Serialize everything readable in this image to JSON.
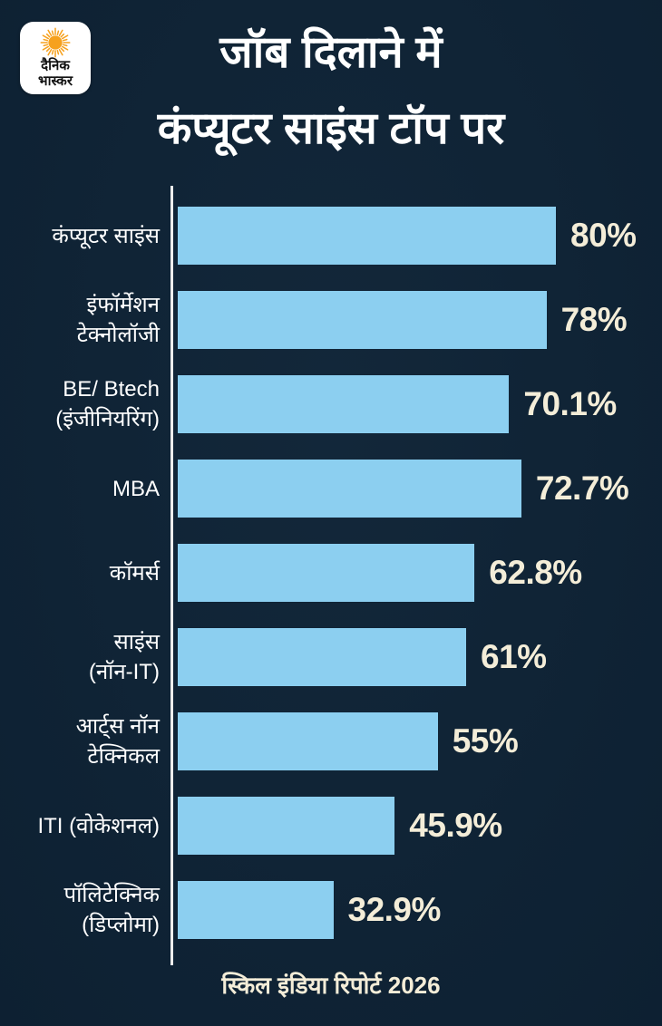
{
  "brand": {
    "logo_line1": "दैनिक",
    "logo_line2": "भास्कर",
    "sun_color": "#F6A11E"
  },
  "header": {
    "title_line1": "जॉब दिलाने में",
    "title_line2": "कंप्यूटर साइंस टॉप पर"
  },
  "chart_data": {
    "type": "bar",
    "orientation": "horizontal",
    "title": "जॉब दिलाने में कंप्यूटर साइंस टॉप पर",
    "categories": [
      "कंप्यूटर साइंस",
      "इंफॉर्मेशन\nटेक्नोलॉजी",
      "BE/ Btech\n(इंजीनियरिंग)",
      "MBA",
      "कॉमर्स",
      "साइंस\n(नॉन-IT)",
      "आर्ट्स नॉन\nटेक्निकल",
      "ITI (वोकेशनल)",
      "पॉलिटेक्निक\n(डिप्लोमा)"
    ],
    "values": [
      80,
      78,
      70.1,
      72.7,
      62.8,
      61,
      55,
      45.9,
      32.9
    ],
    "value_labels": [
      "80%",
      "78%",
      "70.1%",
      "72.7%",
      "62.8%",
      "61%",
      "55%",
      "45.9%",
      "32.9%"
    ],
    "xlim": [
      0,
      80
    ],
    "grid": false,
    "legend": false,
    "bar_color": "#8CCFF0",
    "value_label_color": "#F4EDD8",
    "category_label_color": "#FFFFFF",
    "axis_color": "#EDEDED",
    "background_color": "#0E2336"
  },
  "footer": {
    "source": "स्किल इंडिया रिपोर्ट 2026"
  }
}
